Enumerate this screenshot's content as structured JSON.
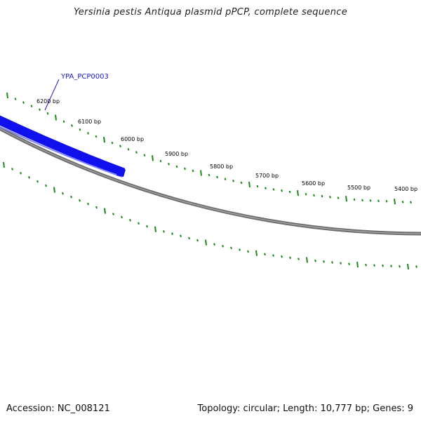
{
  "title": "Yersinia pestis Antiqua plasmid pPCP, complete sequence",
  "footer": {
    "accession": "Accession: NC_008121",
    "summary": "Topology: circular; Length: 10,777 bp; Genes: 9"
  },
  "colors": {
    "gene": "#1010ee",
    "gene_highlight": "#7a7aff",
    "backbone": "#7a7a7a",
    "ticks": "#1a8a1a",
    "label": "#1a1acc"
  },
  "genes": [
    {
      "name": "YPA_PCP0003"
    }
  ],
  "tick_labels": [
    "6200 bp",
    "6100 bp",
    "6000 bp",
    "5900 bp",
    "5800 bp",
    "5700 bp",
    "5600 bp",
    "5500 bp",
    "5400 bp"
  ]
}
